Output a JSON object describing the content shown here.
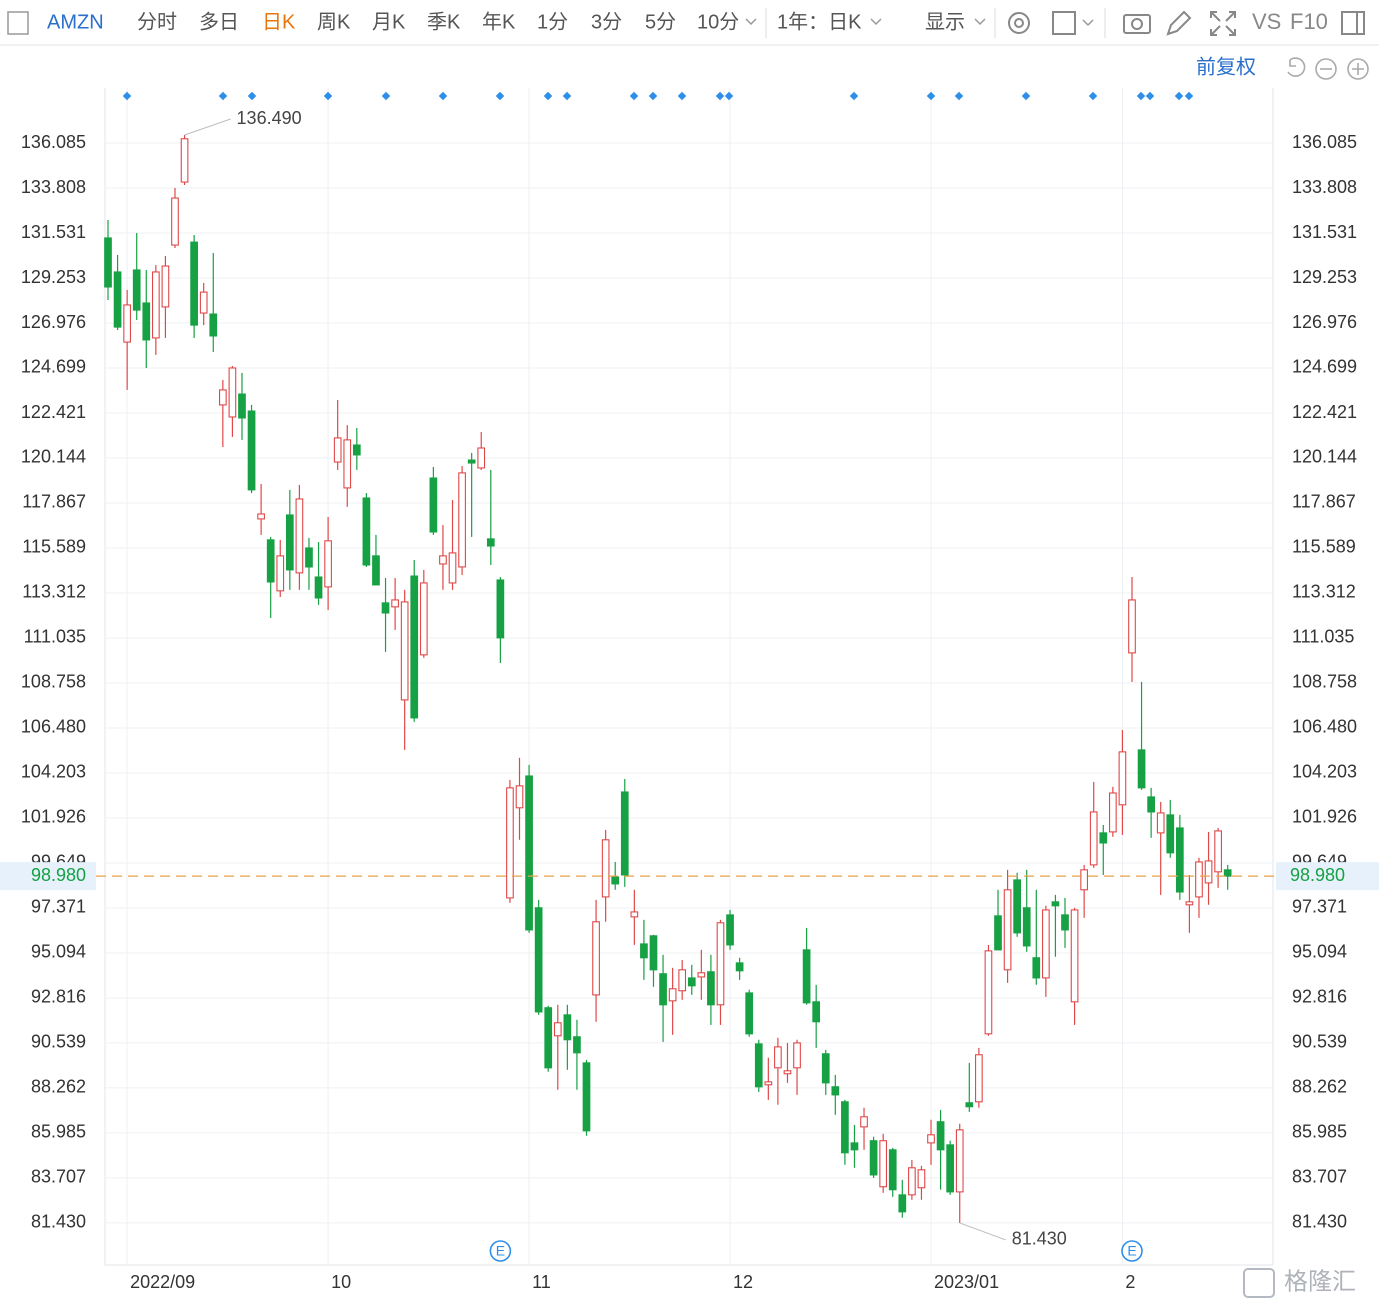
{
  "toolbar": {
    "symbol": "AMZN",
    "tabs": [
      "分时",
      "多日",
      "日K",
      "周K",
      "月K",
      "季K",
      "年K",
      "1分",
      "3分",
      "5分",
      "10分"
    ],
    "active_tab": 2,
    "range": "1年：日K",
    "display": "显示",
    "vs": "VS",
    "f10": "F10",
    "adjust": "前复权"
  },
  "chart_data": {
    "type": "candlestick",
    "categories": [
      null,
      null,
      "2022/09",
      null,
      null,
      null,
      null,
      null,
      null,
      null,
      null,
      null,
      null,
      null,
      null,
      null,
      null,
      null,
      null,
      null,
      null,
      null,
      null,
      "10",
      null,
      null,
      null,
      null,
      null,
      null,
      null,
      null,
      null,
      null,
      null,
      null,
      null,
      null,
      null,
      null,
      null,
      null,
      null,
      null,
      "11",
      null,
      null,
      null,
      null,
      null,
      null,
      null,
      null,
      null,
      null,
      null,
      null,
      null,
      null,
      null,
      null,
      null,
      null,
      null,
      null,
      "12",
      null,
      null,
      null,
      null,
      null,
      null,
      null,
      null,
      null,
      null,
      null,
      null,
      null,
      null,
      null,
      null,
      null,
      null,
      null,
      null,
      "2023/01",
      null,
      null,
      null,
      null,
      null,
      null,
      null,
      null,
      null,
      null,
      null,
      null,
      null,
      null,
      null,
      null,
      null,
      null,
      null,
      "2",
      null,
      null,
      null,
      null,
      null,
      null,
      null,
      null,
      null,
      null,
      null
    ],
    "open": [
      131.28,
      129.56,
      126.01,
      129.66,
      127.99,
      126.22,
      127.79,
      130.92,
      134.11,
      131.07,
      127.48,
      127.43,
      122.83,
      122.22,
      123.38,
      122.52,
      117.06,
      116.0,
      113.42,
      117.26,
      114.33,
      115.59,
      114.12,
      113.62,
      119.94,
      118.63,
      120.8,
      118.12,
      115.19,
      112.81,
      112.61,
      107.9,
      114.17,
      110.18,
      119.13,
      114.78,
      113.82,
      114.63,
      120.04,
      119.64,
      116.05,
      113.97,
      97.88,
      102.44,
      104.05,
      97.38,
      92.32,
      90.9,
      91.96,
      90.85,
      89.53,
      92.97,
      97.93,
      98.94,
      103.24,
      96.92,
      95.55,
      95.96,
      94.04,
      92.67,
      93.18,
      93.83,
      93.88,
      94.14,
      92.47,
      97.02,
      94.59,
      93.07,
      90.49,
      88.42,
      89.28,
      88.98,
      89.28,
      95.25,
      92.62,
      89.99,
      88.32,
      87.56,
      85.48,
      86.29,
      85.59,
      83.26,
      85.13,
      82.85,
      82.85,
      83.21,
      85.48,
      86.55,
      85.38,
      83.0,
      87.51,
      87.56,
      91.0,
      96.97,
      94.24,
      98.79,
      97.38,
      94.85,
      93.83,
      97.68,
      97.02,
      92.62,
      98.29,
      99.55,
      101.17,
      101.22,
      102.59,
      110.28,
      105.37,
      102.99,
      101.17,
      102.08,
      101.42,
      97.53,
      97.93,
      98.64,
      99.2,
      99.3
    ],
    "high": [
      132.19,
      130.42,
      128.65,
      131.53,
      129.66,
      129.91,
      130.37,
      133.81,
      136.49,
      131.43,
      129.0,
      130.52,
      124.09,
      124.8,
      124.45,
      122.83,
      118.83,
      116.15,
      116.0,
      118.53,
      118.78,
      116.1,
      115.89,
      117.16,
      123.08,
      121.81,
      121.66,
      118.37,
      116.25,
      114.07,
      114.07,
      113.47,
      114.98,
      114.48,
      119.69,
      116.75,
      118.02,
      119.74,
      120.4,
      121.46,
      119.54,
      114.12,
      103.85,
      104.97,
      104.61,
      97.78,
      92.42,
      92.47,
      92.47,
      91.71,
      89.68,
      97.78,
      101.32,
      99.7,
      103.9,
      98.29,
      96.77,
      96.01,
      95.0,
      94.34,
      94.74,
      94.49,
      95.25,
      95.0,
      96.77,
      97.27,
      94.85,
      93.23,
      90.7,
      89.79,
      90.8,
      90.54,
      90.7,
      96.36,
      93.48,
      90.19,
      88.92,
      87.66,
      86.39,
      87.26,
      85.79,
      85.94,
      85.23,
      83.61,
      84.62,
      84.32,
      86.65,
      87.15,
      85.59,
      86.45,
      89.53,
      90.29,
      95.5,
      98.29,
      99.3,
      99.15,
      99.3,
      98.29,
      97.48,
      98.03,
      97.88,
      97.38,
      99.55,
      103.75,
      101.57,
      103.5,
      106.38,
      114.12,
      108.81,
      103.45,
      102.74,
      102.84,
      102.08,
      99.04,
      99.91,
      101.22,
      101.42,
      99.55
    ],
    "low": [
      128.14,
      126.62,
      123.59,
      127.13,
      124.7,
      125.36,
      126.22,
      130.77,
      133.96,
      126.22,
      126.87,
      125.51,
      120.7,
      121.21,
      121.06,
      118.37,
      116.25,
      112.05,
      113.11,
      113.47,
      113.47,
      113.47,
      112.71,
      112.45,
      119.54,
      117.67,
      119.54,
      114.63,
      113.72,
      110.33,
      111.44,
      105.37,
      106.79,
      110.03,
      116.25,
      113.47,
      113.47,
      114.22,
      116.15,
      119.54,
      114.73,
      109.77,
      97.63,
      100.82,
      96.11,
      91.96,
      89.08,
      88.17,
      89.18,
      88.17,
      85.84,
      91.61,
      96.67,
      98.29,
      98.44,
      95.5,
      93.73,
      93.38,
      90.59,
      90.95,
      92.72,
      92.97,
      92.72,
      91.45,
      91.45,
      95.25,
      93.73,
      90.85,
      88.06,
      87.66,
      87.41,
      88.52,
      87.91,
      92.47,
      90.29,
      87.91,
      86.9,
      84.37,
      84.22,
      85.13,
      83.71,
      82.95,
      82.75,
      81.69,
      82.6,
      82.6,
      84.37,
      83.11,
      82.85,
      81.43,
      87.05,
      87.26,
      90.9,
      95.25,
      93.58,
      95.91,
      95.15,
      93.48,
      92.87,
      94.9,
      95.35,
      91.45,
      96.87,
      99.4,
      99.04,
      100.97,
      101.07,
      108.81,
      103.35,
      100.92,
      98.03,
      99.91,
      97.78,
      96.11,
      96.87,
      97.53,
      98.39,
      98.29
    ],
    "close": [
      128.8,
      126.77,
      127.89,
      127.63,
      126.12,
      129.56,
      129.86,
      133.3,
      136.3,
      126.87,
      128.54,
      126.32,
      123.59,
      124.7,
      122.17,
      118.53,
      117.31,
      113.87,
      115.19,
      114.48,
      118.07,
      114.63,
      113.06,
      115.95,
      121.16,
      121.06,
      120.3,
      114.73,
      113.72,
      112.3,
      112.96,
      112.86,
      106.99,
      113.82,
      116.4,
      115.19,
      115.34,
      119.39,
      119.89,
      120.65,
      115.69,
      111.04,
      103.45,
      103.55,
      96.26,
      92.11,
      89.28,
      91.56,
      90.7,
      90.04,
      86.09,
      96.67,
      100.82,
      98.59,
      99.04,
      97.17,
      94.85,
      94.24,
      92.47,
      93.28,
      94.24,
      93.43,
      94.09,
      92.47,
      96.62,
      95.5,
      94.19,
      91.0,
      88.32,
      88.57,
      90.34,
      89.13,
      90.54,
      92.57,
      91.61,
      88.52,
      87.91,
      84.98,
      85.13,
      86.8,
      83.86,
      85.59,
      83.11,
      81.99,
      84.22,
      84.12,
      85.89,
      85.13,
      83.0,
      86.14,
      87.31,
      89.94,
      95.2,
      95.25,
      98.29,
      96.11,
      95.45,
      93.83,
      97.27,
      97.48,
      96.26,
      97.27,
      99.3,
      102.23,
      100.66,
      103.19,
      105.27,
      112.96,
      103.45,
      102.23,
      102.18,
      100.16,
      98.18,
      97.68,
      99.7,
      99.75,
      101.27,
      98.98
    ],
    "up_color": "#e04848",
    "down_color": "#16a144",
    "ylim": [
      79.3,
      138.87
    ],
    "yticks": [
      {
        "value": 81.43,
        "label": "81.430"
      },
      83.707,
      85.985,
      88.262,
      90.539,
      92.816,
      95.094,
      97.371,
      99.649,
      101.926,
      104.203,
      {
        "value": 106.48,
        "label": "106.480"
      },
      108.758,
      111.035,
      113.312,
      115.589,
      117.867,
      120.144,
      122.421,
      124.699,
      126.976,
      129.253,
      131.531,
      133.808,
      136.085
    ],
    "grid": true,
    "last_price": {
      "value": 98.98,
      "label": "98.980"
    },
    "max_label": {
      "value": 136.49,
      "label": "136.490"
    },
    "min_label": {
      "value": 81.43,
      "label": "81.430"
    },
    "earnings_marker": "E"
  },
  "watermark": "格隆汇"
}
